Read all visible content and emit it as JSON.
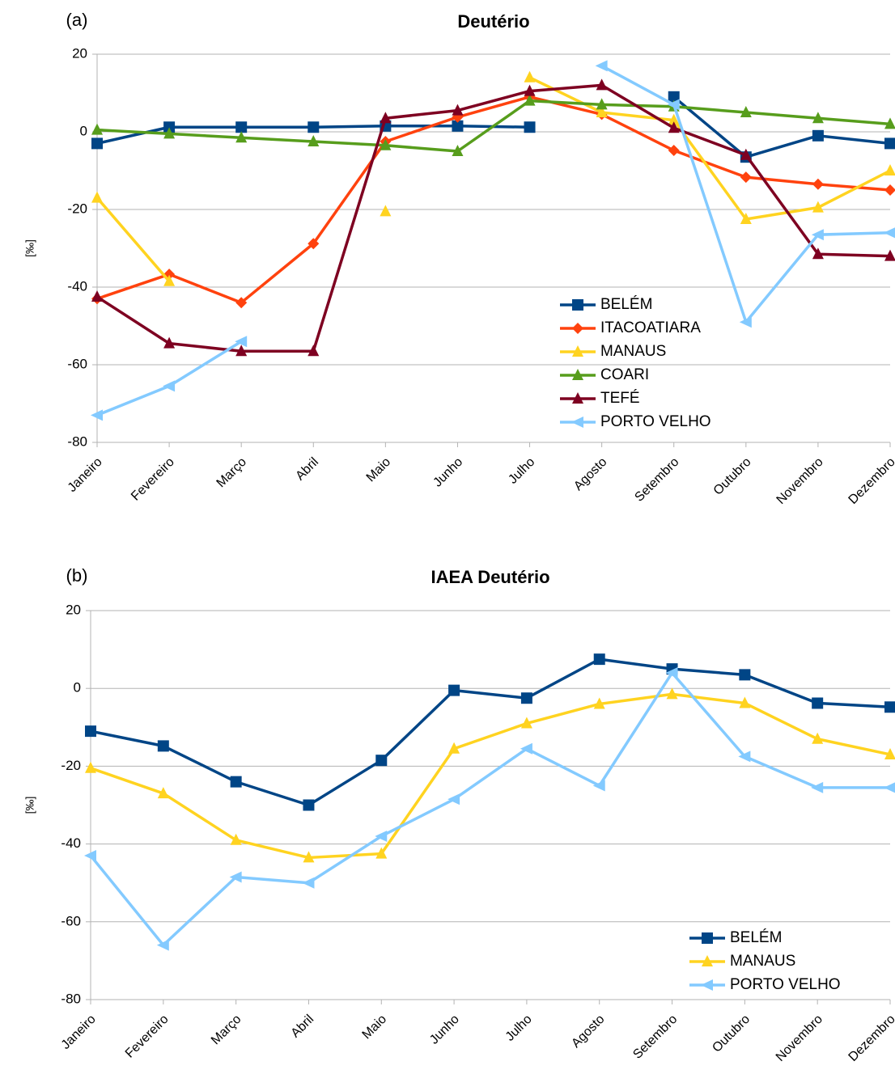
{
  "chart_data": [
    {
      "type": "line",
      "panel_label": "(a)",
      "title": "Deutério",
      "y_label": "[‰]",
      "categories": [
        "Janeiro",
        "Fevereiro",
        "Março",
        "Abril",
        "Maio",
        "Junho",
        "Julho",
        "Agosto",
        "Setembro",
        "Outubro",
        "Novembro",
        "Dezembro"
      ],
      "ylim": [
        -80,
        20
      ],
      "yticks": [
        20,
        0,
        -20,
        -40,
        -60,
        -80
      ],
      "grid": true,
      "series": [
        {
          "name": "BELÉM",
          "color": "#004586",
          "marker": "square",
          "values": [
            -3,
            1.2,
            1.2,
            1.2,
            1.5,
            1.5,
            1.2,
            null,
            9,
            -6.5,
            -1,
            -3
          ]
        },
        {
          "name": "ITACOATIARA",
          "color": "#ff420e",
          "marker": "diamond",
          "values": [
            -43,
            -36.7,
            -44,
            -28.8,
            -2.5,
            3.8,
            9,
            4.5,
            -4.8,
            -11.7,
            -13.5,
            -15
          ]
        },
        {
          "name": "MANAUS",
          "color": "#ffd320",
          "marker": "triangle",
          "values": [
            -17,
            -38.5,
            null,
            null,
            -20.5,
            null,
            14,
            5,
            3,
            -22.5,
            -19.5,
            -10
          ]
        },
        {
          "name": "COARI",
          "color": "#579d1c",
          "marker": "triangle",
          "values": [
            0.5,
            -0.5,
            -1.5,
            -2.5,
            -3.5,
            -5,
            8,
            7,
            6.5,
            5,
            3.5,
            2
          ]
        },
        {
          "name": "TEFÉ",
          "color": "#7e0021",
          "marker": "triangle",
          "values": [
            -42.5,
            -54.5,
            -56.5,
            -56.5,
            3.5,
            5.5,
            10.5,
            12,
            1,
            -6,
            -31.5,
            -32
          ]
        },
        {
          "name": "PORTO VELHO",
          "color": "#83caff",
          "marker": "left-triangle",
          "values": [
            -73,
            -65.5,
            -54,
            null,
            null,
            null,
            null,
            17,
            7,
            -49,
            -26.5,
            -26
          ]
        }
      ]
    },
    {
      "type": "line",
      "panel_label": "(b)",
      "title": "IAEA Deutério",
      "y_label": "[‰]",
      "categories": [
        "Janeiro",
        "Fevereiro",
        "Março",
        "Abril",
        "Maio",
        "Junho",
        "Julho",
        "Agosto",
        "Setembro",
        "Outubro",
        "Novembro",
        "Dezembro"
      ],
      "ylim": [
        -80,
        20
      ],
      "yticks": [
        20,
        0,
        -20,
        -40,
        -60,
        -80
      ],
      "grid": true,
      "series": [
        {
          "name": "BELÉM",
          "color": "#004586",
          "marker": "square",
          "values": [
            -11,
            -14.8,
            -24,
            -30,
            -18.5,
            -0.5,
            -2.5,
            7.5,
            5,
            3.5,
            -3.8,
            -4.8
          ]
        },
        {
          "name": "MANAUS",
          "color": "#ffd320",
          "marker": "triangle",
          "values": [
            -20.5,
            -27,
            -39,
            -43.5,
            -42.5,
            -15.5,
            -9,
            -4,
            -1.5,
            -3.8,
            -13,
            -17
          ]
        },
        {
          "name": "PORTO VELHO",
          "color": "#83caff",
          "marker": "left-triangle",
          "values": [
            -43,
            -66,
            -48.5,
            -50,
            -38,
            -28.5,
            -15.5,
            -25,
            4,
            -17.5,
            -25.5,
            -25.5
          ]
        }
      ]
    }
  ]
}
